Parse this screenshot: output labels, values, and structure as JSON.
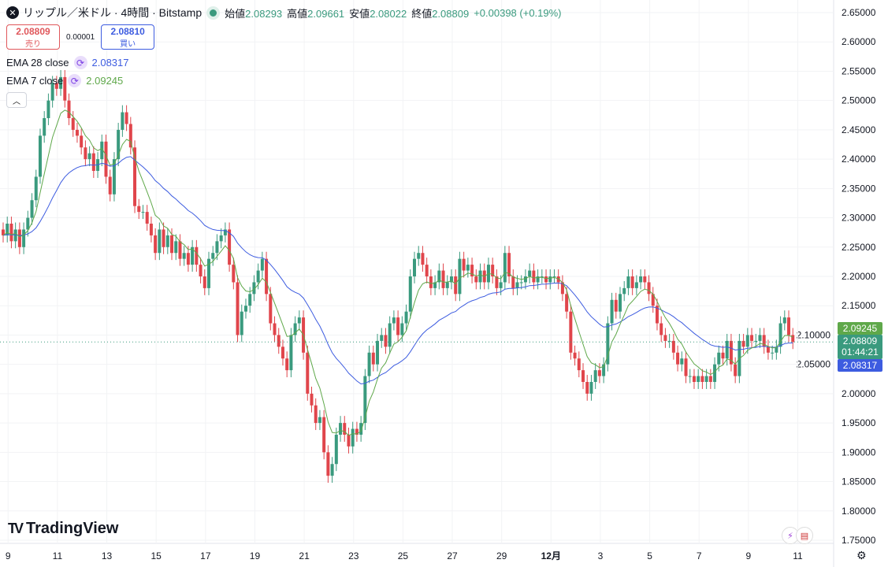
{
  "header": {
    "symbol_icon": "xrp-logo-icon",
    "title": "リップル／米ドル · 4時間 · Bitstamp",
    "status_icon": "market-open-dot-icon",
    "open_label": "始値",
    "open": "2.08293",
    "high_label": "高値",
    "high": "2.09661",
    "low_label": "安値",
    "low": "2.08022",
    "close_label": "終値",
    "close": "2.08809",
    "change": "+0.00398 (+0.19%)"
  },
  "trade": {
    "sell_price": "2.08809",
    "sell_label": "売り",
    "spread": "0.00001",
    "buy_price": "2.08810",
    "buy_label": "買い"
  },
  "indicators": [
    {
      "label": "EMA 28 close",
      "value": "2.08317",
      "color": "#3d5ce0",
      "period": 28
    },
    {
      "label": "EMA 7 close",
      "value": "2.09245",
      "color": "#5fa84a",
      "period": 7
    }
  ],
  "collapse_icon": "chevron-up-icon",
  "price_labels": {
    "ema7": "2.09245",
    "last": "2.08809",
    "countdown": "01:44:21",
    "ema28": "2.08317"
  },
  "brand": "TradingView",
  "colors": {
    "up": "#3a9a7e",
    "down": "#e0454b",
    "ema7": "#5fa84a",
    "ema28": "#3d5ce0",
    "last": "#3a9a7e"
  },
  "chart_data": {
    "type": "candlestick",
    "interval": "4h",
    "ylim": [
      1.75,
      2.65
    ],
    "y_ticks": [
      "2.65000",
      "2.60000",
      "2.55000",
      "2.50000",
      "2.45000",
      "2.40000",
      "2.35000",
      "2.30000",
      "2.25000",
      "2.20000",
      "2.15000",
      "2.10000",
      "2.05000",
      "2.00000",
      "1.95000",
      "1.90000",
      "1.85000",
      "1.80000",
      "1.75000"
    ],
    "x_ticks": [
      "9",
      "11",
      "13",
      "15",
      "17",
      "19",
      "21",
      "23",
      "25",
      "27",
      "29",
      "12月",
      "3",
      "5",
      "7",
      "9",
      "11"
    ],
    "first_open": 2.28,
    "close": [
      2.27,
      2.29,
      2.26,
      2.28,
      2.25,
      2.28,
      2.3,
      2.33,
      2.37,
      2.44,
      2.47,
      2.5,
      2.53,
      2.52,
      2.54,
      2.5,
      2.47,
      2.45,
      2.44,
      2.42,
      2.4,
      2.41,
      2.38,
      2.4,
      2.43,
      2.37,
      2.34,
      2.4,
      2.45,
      2.48,
      2.46,
      2.42,
      2.32,
      2.31,
      2.31,
      2.29,
      2.27,
      2.24,
      2.28,
      2.25,
      2.27,
      2.24,
      2.26,
      2.23,
      2.24,
      2.22,
      2.25,
      2.22,
      2.2,
      2.18,
      2.23,
      2.24,
      2.26,
      2.27,
      2.28,
      2.22,
      2.19,
      2.1,
      2.14,
      2.15,
      2.17,
      2.19,
      2.21,
      2.23,
      2.17,
      2.12,
      2.1,
      2.08,
      2.06,
      2.04,
      2.1,
      2.12,
      2.13,
      2.07,
      2.0,
      1.98,
      1.95,
      1.96,
      1.9,
      1.86,
      1.88,
      1.93,
      1.95,
      1.93,
      1.91,
      1.94,
      1.93,
      1.95,
      2.03,
      2.07,
      2.05,
      2.09,
      2.1,
      2.08,
      2.12,
      2.13,
      2.1,
      2.12,
      2.14,
      2.2,
      2.23,
      2.24,
      2.22,
      2.2,
      2.18,
      2.19,
      2.21,
      2.18,
      2.19,
      2.2,
      2.17,
      2.23,
      2.21,
      2.22,
      2.2,
      2.19,
      2.21,
      2.19,
      2.22,
      2.2,
      2.18,
      2.19,
      2.24,
      2.2,
      2.18,
      2.19,
      2.19,
      2.2,
      2.21,
      2.19,
      2.2,
      2.2,
      2.19,
      2.2,
      2.2,
      2.19,
      2.17,
      2.14,
      2.07,
      2.06,
      2.04,
      2.02,
      2.0,
      2.02,
      2.04,
      2.03,
      2.05,
      2.12,
      2.16,
      2.14,
      2.17,
      2.18,
      2.2,
      2.18,
      2.19,
      2.2,
      2.19,
      2.17,
      2.15,
      2.12,
      2.1,
      2.09,
      2.09,
      2.07,
      2.05,
      2.06,
      2.03,
      2.03,
      2.02,
      2.03,
      2.02,
      2.03,
      2.02,
      2.05,
      2.07,
      2.06,
      2.09,
      2.05,
      2.03,
      2.09,
      2.08,
      2.1,
      2.09,
      2.09,
      2.1,
      2.08,
      2.07,
      2.07,
      2.08,
      2.12,
      2.13,
      2.1,
      2.08809
    ],
    "last_price": 2.08809
  }
}
